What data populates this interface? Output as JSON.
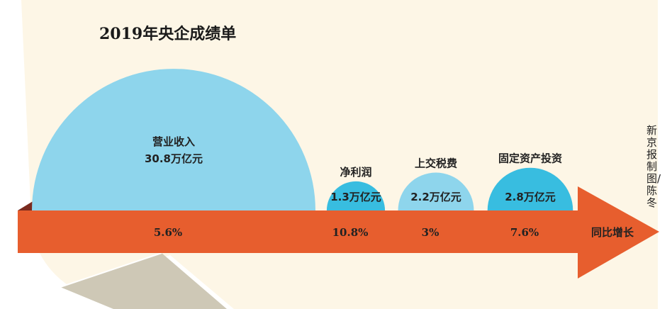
{
  "title": "2019年央企成绩单",
  "credit": "新京报制图/陈冬",
  "colors": {
    "background": "#fdf6e6",
    "arrow": "#e75e2e",
    "light_blue": "#8ed5ec",
    "dark_blue": "#38bde0",
    "curl": "#cec8b6"
  },
  "chart_data": {
    "type": "semicircle-bubble",
    "title": "2019年央企成绩单",
    "unit": "万亿元",
    "growth_label": "同比增长",
    "items": [
      {
        "name": "营业收入",
        "value": 30.8,
        "value_label": "30.8万亿元",
        "growth": "5.6%",
        "color": "light_blue"
      },
      {
        "name": "净利润",
        "value": 1.3,
        "value_label": "1.3万亿元",
        "growth": "10.8%",
        "color": "dark_blue"
      },
      {
        "name": "上交税费",
        "value": 2.2,
        "value_label": "2.2万亿元",
        "growth": "3%",
        "color": "light_blue"
      },
      {
        "name": "固定资产投资",
        "value": 2.8,
        "value_label": "2.8万亿元",
        "growth": "7.6%",
        "color": "dark_blue"
      }
    ]
  }
}
